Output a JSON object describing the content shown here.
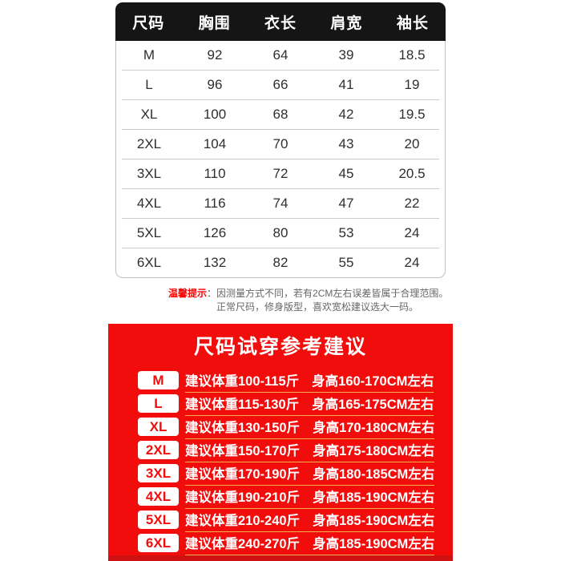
{
  "size_table": {
    "headers": [
      "尺码",
      "胸围",
      "衣长",
      "肩宽",
      "袖长"
    ],
    "rows": [
      {
        "size": "M",
        "chest": "92",
        "length": "64",
        "shoulder": "39",
        "sleeve": "18.5"
      },
      {
        "size": "L",
        "chest": "96",
        "length": "66",
        "shoulder": "41",
        "sleeve": "19"
      },
      {
        "size": "XL",
        "chest": "100",
        "length": "68",
        "shoulder": "42",
        "sleeve": "19.5"
      },
      {
        "size": "2XL",
        "chest": "104",
        "length": "70",
        "shoulder": "43",
        "sleeve": "20"
      },
      {
        "size": "3XL",
        "chest": "110",
        "length": "72",
        "shoulder": "45",
        "sleeve": "20.5"
      },
      {
        "size": "4XL",
        "chest": "116",
        "length": "74",
        "shoulder": "47",
        "sleeve": "22"
      },
      {
        "size": "5XL",
        "chest": "126",
        "length": "80",
        "shoulder": "53",
        "sleeve": "24"
      },
      {
        "size": "6XL",
        "chest": "132",
        "length": "82",
        "shoulder": "55",
        "sleeve": "24"
      }
    ]
  },
  "notice": {
    "label": "温馨提示",
    "colon": "：",
    "line1": "因测量方式不同，若有2CM左右误差皆属于合理范围。",
    "line2": "正常尺码，修身版型，喜欢宽松建议选大一码。"
  },
  "fit_guide": {
    "title": "尺码试穿参考建议",
    "rows": [
      {
        "size": "M",
        "weight": "建议体重100-115斤",
        "height": "身高160-170CM左右"
      },
      {
        "size": "L",
        "weight": "建议体重115-130斤",
        "height": "身高165-175CM左右"
      },
      {
        "size": "XL",
        "weight": "建议体重130-150斤",
        "height": "身高170-180CM左右"
      },
      {
        "size": "2XL",
        "weight": "建议体重150-170斤",
        "height": "身高175-180CM左右"
      },
      {
        "size": "3XL",
        "weight": "建议体重170-190斤",
        "height": "身高180-185CM左右"
      },
      {
        "size": "4XL",
        "weight": "建议体重190-210斤",
        "height": "身高185-190CM左右"
      },
      {
        "size": "5XL",
        "weight": "建议体重210-240斤",
        "height": "身高185-190CM左右"
      },
      {
        "size": "6XL",
        "weight": "建议体重240-270斤",
        "height": "身高185-190CM左右"
      }
    ]
  },
  "colors": {
    "accent_red": "#f20d0d",
    "header_black": "#151515",
    "gold_divider": "#edb24c",
    "notice_label_red": "#fe0000",
    "table_border_gray": "#c0c0c0"
  }
}
